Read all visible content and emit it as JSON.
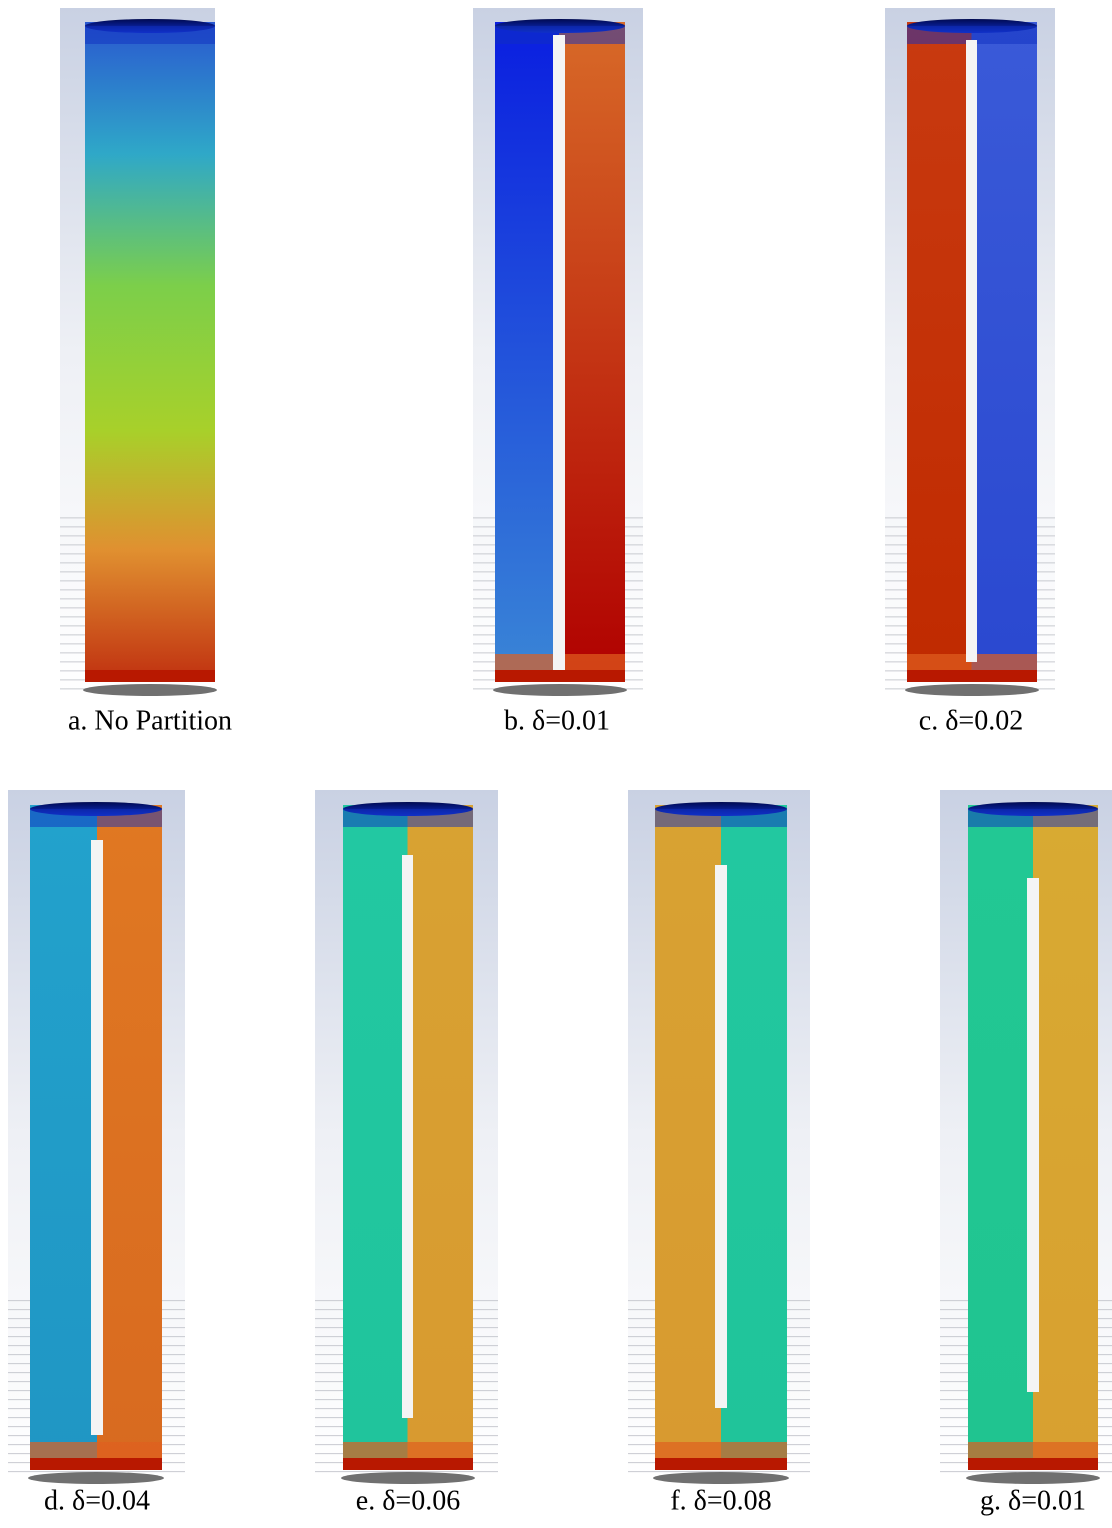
{
  "figure": {
    "panels": [
      {
        "caption": "a. No Partition"
      },
      {
        "caption": "b. δ=0.01"
      },
      {
        "caption": "c. δ=0.02"
      },
      {
        "caption": "d. δ=0.04"
      },
      {
        "caption": "e. δ=0.06"
      },
      {
        "caption": "f. δ=0.08"
      },
      {
        "caption": "g. δ=0.01"
      }
    ]
  }
}
